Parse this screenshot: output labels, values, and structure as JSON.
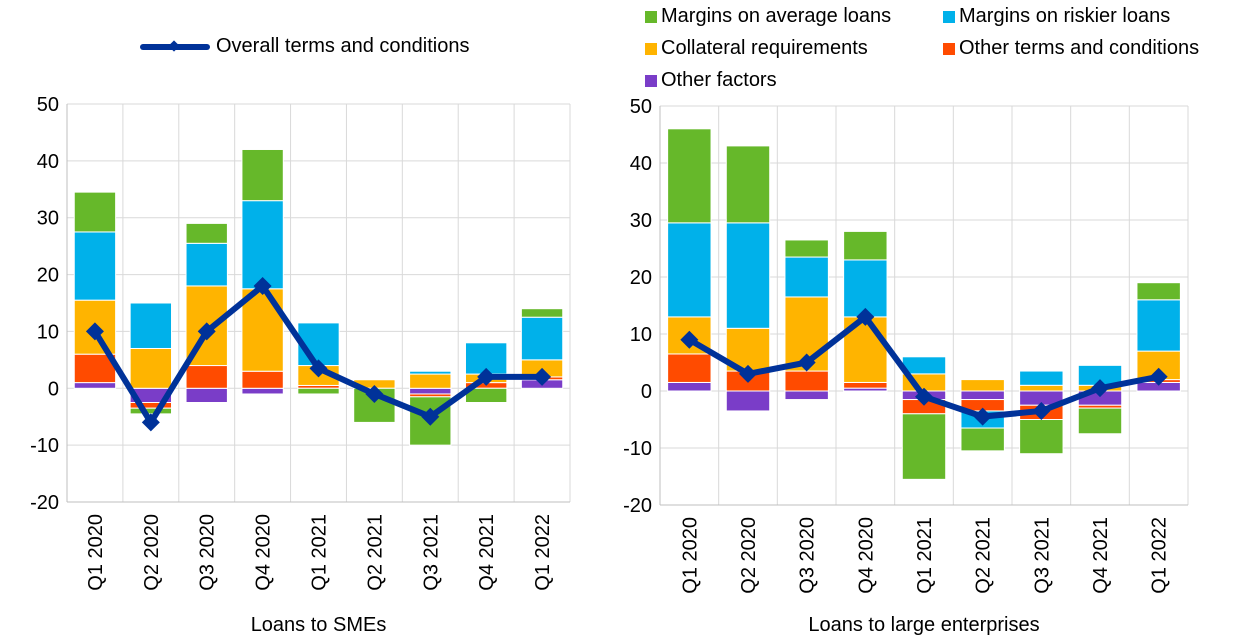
{
  "legend": {
    "line_label": "Overall terms and conditions",
    "items": [
      {
        "label": "Margins on average loans",
        "color": "#66B82A"
      },
      {
        "label": "Margins on riskier loans",
        "color": "#00B1EA"
      },
      {
        "label": "Collateral requirements",
        "color": "#FFB400"
      },
      {
        "label": "Other terms and conditions",
        "color": "#FF4B00"
      },
      {
        "label": "Other factors",
        "color": "#7A3DC8"
      }
    ],
    "line_color": "#003299"
  },
  "chart_data": [
    {
      "type": "bar",
      "stacked": true,
      "title": "",
      "xlabel": "Loans to SMEs",
      "ylabel": "",
      "ylim": [
        -20,
        50
      ],
      "yticks": [
        -20,
        -10,
        0,
        10,
        20,
        30,
        40,
        50
      ],
      "categories": [
        "Q1 2020",
        "Q2 2020",
        "Q3 2020",
        "Q4 2020",
        "Q1 2021",
        "Q2 2021",
        "Q3 2021",
        "Q4 2021",
        "Q1 2022"
      ],
      "series": [
        {
          "name": "Other factors",
          "values": [
            1,
            -2.5,
            -2.5,
            -1,
            0,
            0,
            -1,
            0,
            1.5
          ]
        },
        {
          "name": "Other terms and conditions",
          "values": [
            5,
            -1,
            4,
            3,
            0.5,
            0,
            -0.5,
            1,
            0.5
          ]
        },
        {
          "name": "Collateral requirements",
          "values": [
            9.5,
            7,
            14,
            14.5,
            3.5,
            1.5,
            2.5,
            1.5,
            3
          ]
        },
        {
          "name": "Margins on riskier loans",
          "values": [
            12,
            8,
            7.5,
            15.5,
            7.5,
            0,
            0.5,
            5.5,
            7.5
          ]
        },
        {
          "name": "Margins on average loans",
          "values": [
            7,
            -1,
            3.5,
            9,
            -1,
            -6,
            -8.5,
            -2.5,
            1.5
          ]
        }
      ],
      "line": {
        "name": "Overall terms and conditions",
        "values": [
          10,
          -6,
          10,
          18,
          3.5,
          -1,
          -5,
          2,
          2
        ]
      }
    },
    {
      "type": "bar",
      "stacked": true,
      "title": "",
      "xlabel": "Loans to large enterprises",
      "ylabel": "",
      "ylim": [
        -20,
        50
      ],
      "yticks": [
        -20,
        -10,
        0,
        10,
        20,
        30,
        40,
        50
      ],
      "categories": [
        "Q1 2020",
        "Q2 2020",
        "Q3 2020",
        "Q4 2020",
        "Q1 2021",
        "Q2 2021",
        "Q3 2021",
        "Q4 2021",
        "Q1 2022"
      ],
      "series": [
        {
          "name": "Other factors",
          "values": [
            1.5,
            -3.5,
            -1.5,
            0.5,
            -1.5,
            -1.5,
            -2.5,
            -2.5,
            1.5
          ]
        },
        {
          "name": "Other terms and conditions",
          "values": [
            5,
            3.5,
            3.5,
            1,
            -2.5,
            -2,
            -2.5,
            -0.5,
            0.5
          ]
        },
        {
          "name": "Collateral requirements",
          "values": [
            6.5,
            7.5,
            13,
            11.5,
            3,
            2,
            1,
            1,
            5
          ]
        },
        {
          "name": "Margins on riskier loans",
          "values": [
            16.5,
            18.5,
            7,
            10,
            3,
            -3,
            2.5,
            3.5,
            9
          ]
        },
        {
          "name": "Margins on average loans",
          "values": [
            16.5,
            13.5,
            3,
            5,
            -11.5,
            -4,
            -6,
            -4.5,
            3
          ]
        }
      ],
      "line": {
        "name": "Overall terms and conditions",
        "values": [
          9,
          3,
          5,
          13,
          -1,
          -4.5,
          -3.5,
          0.5,
          2.5
        ]
      }
    }
  ]
}
